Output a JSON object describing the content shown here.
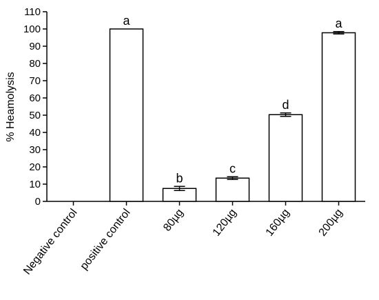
{
  "chart_data": {
    "type": "bar",
    "title": "",
    "xlabel": "",
    "ylabel": "% Heamolysis",
    "ylim": [
      0,
      110
    ],
    "yticks": [
      0,
      10,
      20,
      30,
      40,
      50,
      60,
      70,
      80,
      90,
      100,
      110
    ],
    "grid": false,
    "categories": [
      "Negative control",
      "positive control",
      "80µg",
      "120µg",
      "160µg",
      "200µg"
    ],
    "values": [
      0,
      100,
      7.5,
      13.5,
      50.3,
      97.8
    ],
    "errors": [
      0,
      0,
      1.2,
      0.8,
      1.0,
      0.7
    ],
    "significance_letters": [
      "",
      "a",
      "b",
      "c",
      "d",
      "a"
    ],
    "colors": {
      "bar_fill": "#ffffff",
      "bar_stroke": "#000000",
      "axis": "#000000"
    }
  }
}
